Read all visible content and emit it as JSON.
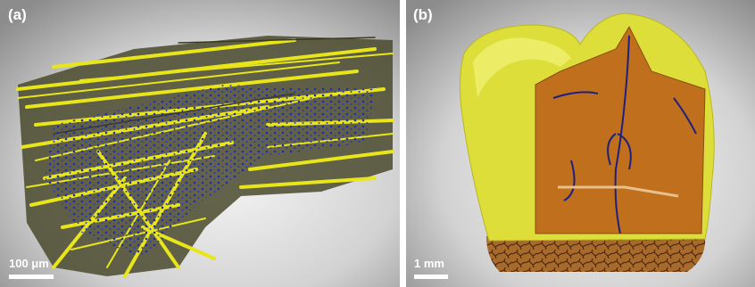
{
  "panels": [
    {
      "label": "(a)",
      "scale_bar": "100 μm"
    },
    {
      "label": "(b)",
      "scale_bar": "1 mm"
    }
  ]
}
